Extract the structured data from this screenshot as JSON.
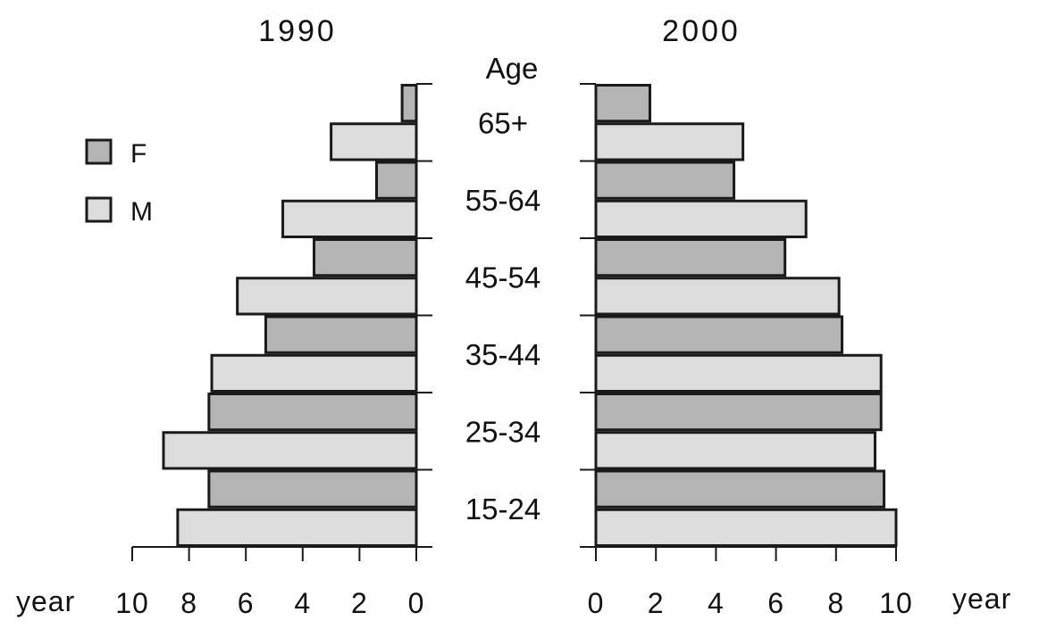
{
  "chart_data": {
    "type": "bar",
    "orientation": "horizontal",
    "panels": [
      {
        "title": "1990",
        "direction": "left",
        "xlabel": "year",
        "ticks": [
          10,
          8,
          6,
          4,
          2,
          0
        ],
        "xlim": [
          0,
          10
        ]
      },
      {
        "title": "2000",
        "direction": "right",
        "xlabel": "year",
        "ticks": [
          0,
          2,
          4,
          6,
          8,
          10
        ],
        "xlim": [
          0,
          10
        ]
      }
    ],
    "center_axis_label": "Age",
    "categories": [
      "15-24",
      "25-34",
      "35-44",
      "45-54",
      "55-64",
      "65+"
    ],
    "legend": {
      "position": "top-left",
      "items": [
        {
          "label": "F",
          "color": "#b4b4b4"
        },
        {
          "label": "M",
          "color": "#dcdcdc"
        }
      ]
    },
    "series": [
      {
        "name": "F",
        "color": "#b4b4b4",
        "panel": "1990",
        "values": [
          7.3,
          7.3,
          5.3,
          3.6,
          1.4,
          0.5
        ]
      },
      {
        "name": "M",
        "color": "#dcdcdc",
        "panel": "1990",
        "values": [
          8.4,
          8.9,
          7.2,
          6.3,
          4.7,
          3.0
        ]
      },
      {
        "name": "F",
        "color": "#b4b4b4",
        "panel": "2000",
        "values": [
          9.6,
          9.5,
          8.2,
          6.3,
          4.6,
          1.8
        ]
      },
      {
        "name": "M",
        "color": "#dcdcdc",
        "panel": "2000",
        "values": [
          10.0,
          9.3,
          9.5,
          8.1,
          7.0,
          4.9
        ]
      }
    ]
  }
}
